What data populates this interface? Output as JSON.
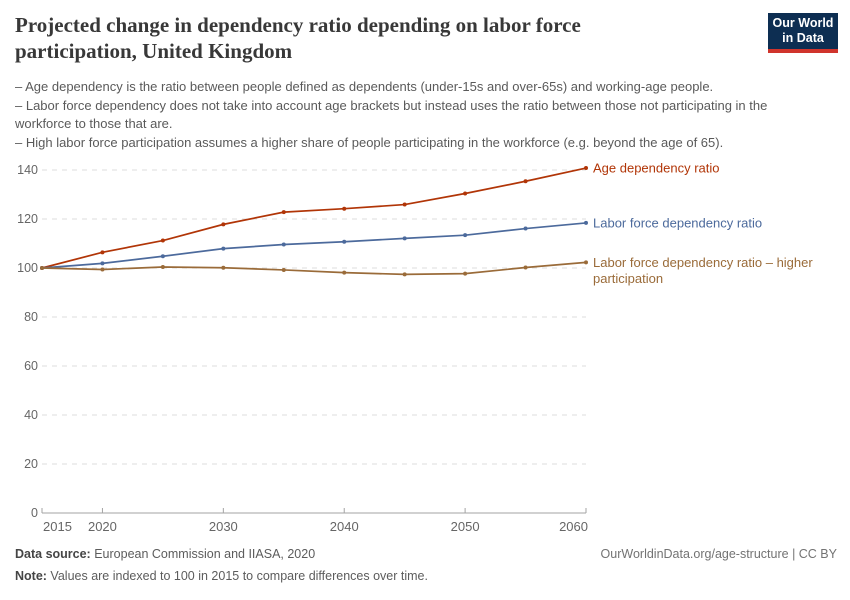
{
  "header": {
    "title": "Projected change in dependency ratio depending on labor force participation, United Kingdom",
    "logo": {
      "line1": "Our World",
      "line2": "in Data",
      "bg_color": "#0d2e52",
      "accent_color": "#d0342c"
    }
  },
  "subtitle_lines": [
    "– Age dependency is the ratio between people defined as dependents (under-15s and over-65s) and working-age people.",
    "– Labor force dependency does not take into account age brackets but instead uses the ratio between those not participating in the workforce to those that are.",
    "– High labor force participation assumes a higher share of people participating in the workforce (e.g. beyond the age of 65)."
  ],
  "chart_data": {
    "type": "line",
    "title": "Projected change in dependency ratio depending on labor force participation, United Kingdom",
    "x": [
      2015,
      2020,
      2025,
      2030,
      2035,
      2040,
      2045,
      2050,
      2055,
      2060
    ],
    "xticks": [
      2015,
      2020,
      2030,
      2040,
      2050,
      2060
    ],
    "ylim": [
      0,
      140
    ],
    "ytick_step": 20,
    "grid": "horizontal-dashed",
    "legend_position": "right-of-line-ends",
    "axis_color": "#a3a3a3",
    "grid_color": "#dcdcdc",
    "tick_label_color": "#666666",
    "series": [
      {
        "name": "Age dependency ratio",
        "color": "#b13507",
        "values": [
          100,
          106.4,
          111.2,
          117.8,
          122.8,
          124.2,
          125.9,
          130.4,
          135.4,
          140.8
        ],
        "label_lines": [
          "Age dependency ratio"
        ]
      },
      {
        "name": "Labor force dependency ratio",
        "color": "#4c6a9c",
        "values": [
          100,
          101.9,
          104.8,
          107.9,
          109.6,
          110.7,
          112.1,
          113.4,
          116.1,
          118.4
        ],
        "label_lines": [
          "Labor force dependency ratio"
        ]
      },
      {
        "name": "Labor force dependency ratio – higher participation",
        "color": "#9a6b39",
        "values": [
          100,
          99.4,
          100.4,
          100.1,
          99.2,
          98.1,
          97.4,
          97.7,
          100.2,
          102.3
        ],
        "label_lines": [
          "Labor force dependency ratio – higher",
          "participation"
        ]
      }
    ]
  },
  "footer": {
    "source_label": "Data source:",
    "source_text": " European Commission and IIASA, 2020",
    "note_label": "Note:",
    "note_text": " Values are indexed to 100 in 2015 to compare differences over time.",
    "credit": "OurWorldinData.org/age-structure | CC BY"
  }
}
